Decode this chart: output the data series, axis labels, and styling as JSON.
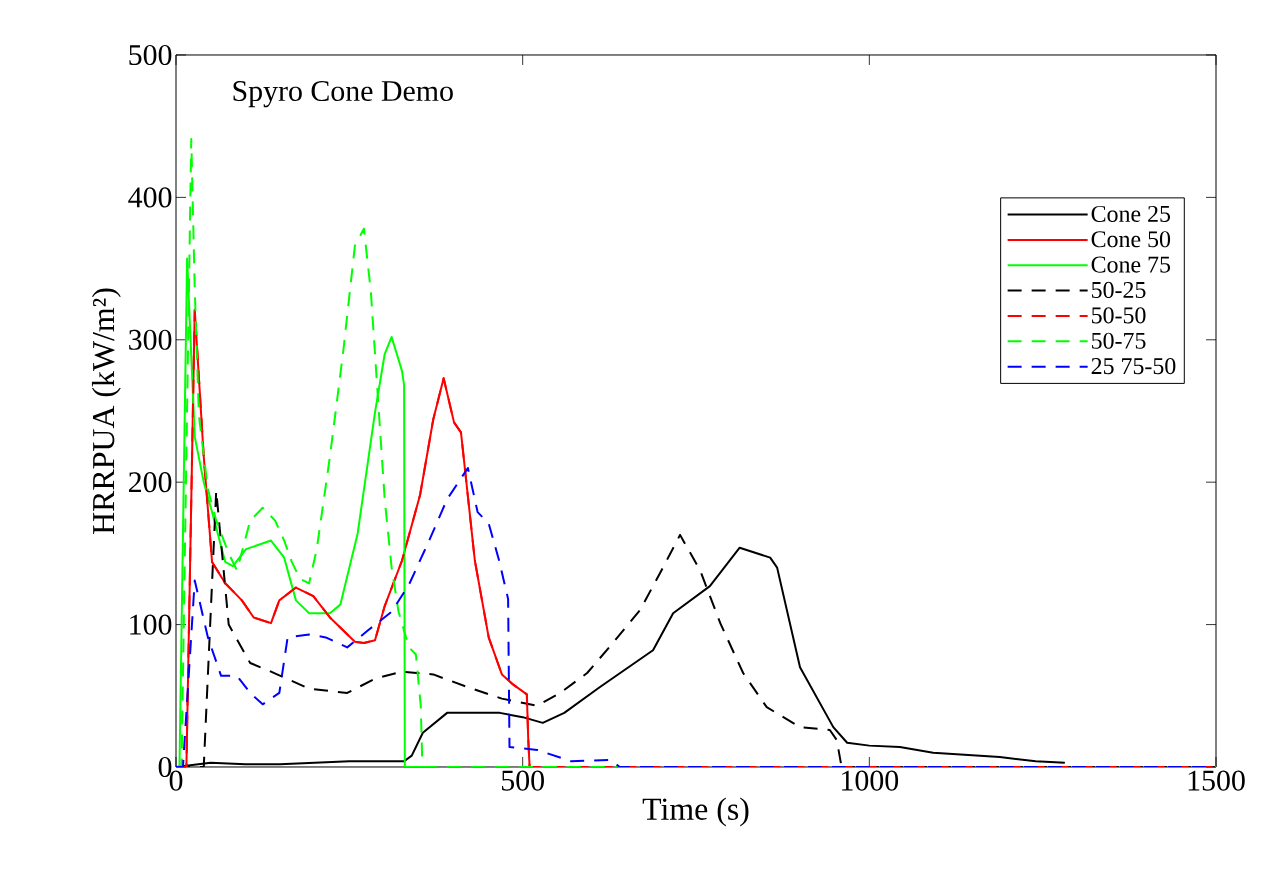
{
  "chart_data": {
    "type": "line",
    "title": "Spyro Cone Demo",
    "xlabel": "Time (s)",
    "ylabel": "HRRPUA (kW/m²)",
    "xlim": [
      0,
      1500
    ],
    "ylim": [
      0,
      500
    ],
    "xticks": [
      0,
      500,
      1000,
      1500
    ],
    "yticks": [
      0,
      100,
      200,
      300,
      400,
      500
    ],
    "grid": false,
    "legend": "top right",
    "marker": "none",
    "series": [
      {
        "name": "Cone 25",
        "color": "#000000",
        "line_style": "solid",
        "x": [
          0,
          50,
          100,
          150,
          200,
          250,
          300,
          329,
          340,
          356,
          391,
          467,
          500,
          529,
          560,
          611,
          688,
          717,
          770,
          813,
          857,
          867,
          900,
          948,
          968,
          1000,
          1044,
          1092,
          1188,
          1240,
          1282
        ],
        "values": [
          0,
          3,
          2,
          2,
          3,
          4,
          4,
          4,
          8,
          24,
          38,
          38,
          35,
          31,
          38,
          56,
          82,
          108,
          127,
          154,
          147,
          140,
          70,
          28,
          17,
          15,
          14,
          10,
          7,
          4,
          3
        ]
      },
      {
        "name": "Cone 50",
        "color": "#ff0000",
        "line_style": "solid",
        "x": [
          0,
          15,
          27,
          40,
          52,
          71,
          95,
          112,
          137,
          149,
          173,
          198,
          222,
          258,
          271,
          287,
          301,
          326,
          352,
          371,
          386,
          401,
          411,
          431,
          451,
          470,
          486,
          506,
          508,
          510
        ],
        "values": [
          0,
          0,
          321,
          218,
          144,
          129,
          117,
          105,
          101,
          117,
          126,
          120,
          105,
          88,
          87,
          89,
          113,
          145,
          191,
          244,
          273,
          242,
          235,
          145,
          91,
          65,
          58,
          51,
          20,
          0
        ]
      },
      {
        "name": "Cone 75",
        "color": "#00ff00",
        "line_style": "solid",
        "x": [
          0,
          5,
          16,
          27,
          40,
          52,
          71,
          82,
          101,
          137,
          156,
          173,
          192,
          222,
          237,
          262,
          287,
          301,
          311,
          326,
          329,
          330,
          360
        ],
        "values": [
          0,
          0,
          357,
          232,
          200,
          179,
          144,
          141,
          153,
          159,
          147,
          117,
          108,
          108,
          114,
          164,
          249,
          290,
          302,
          278,
          268,
          0,
          0
        ]
      },
      {
        "name": "50-25",
        "color": "#000000",
        "line_style": "dashed",
        "x": [
          0,
          40,
          58,
          76,
          107,
          137,
          192,
          247,
          287,
          326,
          371,
          421,
          470,
          521,
          554,
          593,
          630,
          669,
          698,
          727,
          756,
          785,
          818,
          852,
          900,
          943,
          953,
          960,
          1500
        ],
        "values": [
          0,
          0,
          194,
          100,
          73,
          67,
          55,
          52,
          62,
          67,
          65,
          56,
          48,
          43,
          52,
          66,
          87,
          110,
          136,
          163,
          138,
          101,
          66,
          42,
          28,
          26,
          19,
          0,
          0
        ]
      },
      {
        "name": "50-50",
        "color": "#ff0000",
        "line_style": "dashed",
        "x": [
          0,
          15,
          27,
          40,
          52,
          71,
          95,
          112,
          137,
          149,
          173,
          198,
          222,
          258,
          271,
          287,
          301,
          326,
          352,
          371,
          386,
          401,
          411,
          431,
          451,
          470,
          486,
          506,
          508,
          510,
          1500
        ],
        "values": [
          0,
          0,
          321,
          218,
          144,
          129,
          117,
          105,
          101,
          117,
          126,
          120,
          105,
          88,
          87,
          89,
          113,
          145,
          191,
          244,
          273,
          242,
          235,
          145,
          91,
          65,
          58,
          51,
          20,
          0,
          0
        ]
      },
      {
        "name": "50-75",
        "color": "#00ff00",
        "line_style": "dashed",
        "x": [
          0,
          8,
          22,
          27,
          33,
          46,
          58,
          76,
          88,
          107,
          125,
          143,
          156,
          167,
          179,
          192,
          203,
          222,
          241,
          258,
          271,
          281,
          291,
          301,
          311,
          321,
          336,
          346,
          353,
          355,
          357,
          1500
        ],
        "values": [
          0,
          0,
          441,
          336,
          247,
          195,
          173,
          150,
          138,
          173,
          182,
          173,
          159,
          144,
          132,
          129,
          153,
          218,
          291,
          366,
          378,
          334,
          261,
          188,
          140,
          109,
          84,
          79,
          43,
          7,
          0,
          0
        ]
      },
      {
        "name": "25 75-50",
        "color": "#0000ff",
        "line_style": "dashed",
        "x": [
          0,
          10,
          27,
          46,
          65,
          88,
          107,
          125,
          149,
          161,
          192,
          216,
          247,
          277,
          311,
          336,
          366,
          391,
          421,
          435,
          451,
          466,
          479,
          481,
          521,
          570,
          626,
          640,
          1500
        ],
        "values": [
          0,
          0,
          131,
          91,
          64,
          64,
          52,
          44,
          52,
          91,
          93,
          91,
          84,
          96,
          109,
          128,
          160,
          188,
          210,
          179,
          171,
          145,
          118,
          14,
          12,
          4,
          5,
          0,
          0
        ]
      }
    ]
  }
}
